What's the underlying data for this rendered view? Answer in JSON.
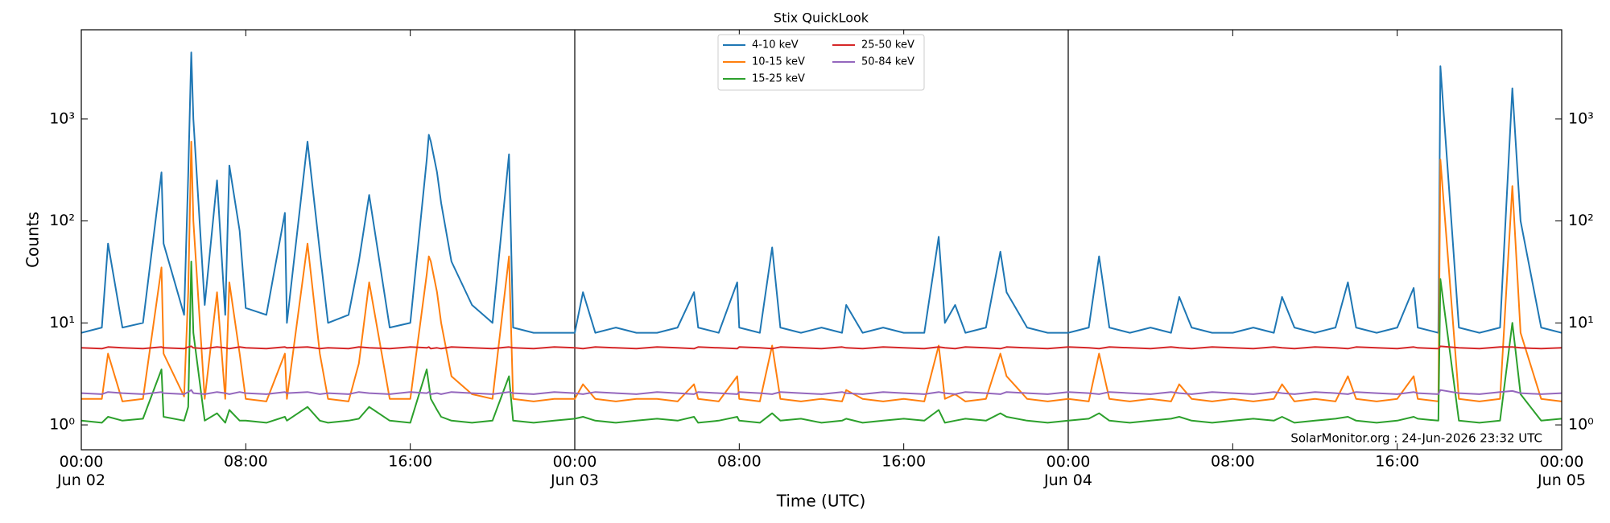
{
  "chart_data": {
    "type": "line",
    "title": "Stix QuickLook",
    "xlabel": "Time (UTC)",
    "ylabel": "Counts",
    "annotation": "SolarMonitor.org : 24-Jun-2026 23:32 UTC",
    "log_y": true,
    "legend": "upper center",
    "xlim": [
      0,
      72
    ],
    "ylim": [
      0.57,
      7500
    ],
    "xticks": [
      {
        "value": 0,
        "label": "00:00\nJun 02"
      },
      {
        "value": 8,
        "label": "08:00"
      },
      {
        "value": 16,
        "label": "16:00"
      },
      {
        "value": 24,
        "label": "00:00\nJun 03"
      },
      {
        "value": 32,
        "label": "08:00"
      },
      {
        "value": 40,
        "label": "16:00"
      },
      {
        "value": 48,
        "label": "00:00\nJun 04"
      },
      {
        "value": 56,
        "label": "08:00"
      },
      {
        "value": 64,
        "label": "16:00"
      },
      {
        "value": 72,
        "label": "00:00\nJun 05"
      }
    ],
    "yticks": [
      {
        "value": 1,
        "label": "10⁰"
      },
      {
        "value": 10,
        "label": "10¹"
      },
      {
        "value": 100,
        "label": "10²"
      },
      {
        "value": 1000,
        "label": "10³"
      }
    ],
    "x": [
      0,
      1,
      1.3,
      2,
      3,
      3.9,
      4,
      5,
      5.2,
      5.35,
      5.45,
      6,
      6.6,
      7,
      7.2,
      7.7,
      8,
      9,
      9.9,
      10,
      11,
      11.6,
      12,
      13,
      13.5,
      14,
      15,
      16,
      16.8,
      16.9,
      17,
      17.3,
      17.5,
      18,
      19,
      20,
      20.8,
      21,
      22,
      23,
      24,
      24.4,
      25,
      26,
      27,
      28,
      29,
      29.8,
      30,
      31,
      31.9,
      32,
      33,
      33.6,
      34,
      35,
      36,
      37,
      37.2,
      38,
      39,
      40,
      41,
      41.7,
      42,
      42.5,
      43,
      44,
      44.7,
      45,
      46,
      47,
      48,
      49,
      49.5,
      50,
      51,
      52,
      53,
      53.4,
      54,
      55,
      56,
      57,
      58,
      58.4,
      59,
      60,
      61,
      61.6,
      62,
      63,
      64,
      64.8,
      65,
      66,
      66.1,
      67,
      68,
      69,
      69.6,
      70,
      71,
      72
    ],
    "series": [
      {
        "name": "4-10 keV",
        "color": "#1f77b4",
        "values": [
          8,
          9,
          60,
          9,
          10,
          300,
          60,
          12,
          280,
          4500,
          1000,
          15,
          250,
          12,
          350,
          80,
          14,
          12,
          120,
          10,
          600,
          50,
          10,
          12,
          40,
          180,
          9,
          10,
          400,
          700,
          600,
          300,
          150,
          40,
          15,
          10,
          450,
          9,
          8,
          8,
          8,
          20,
          8,
          9,
          8,
          8,
          9,
          20,
          9,
          8,
          25,
          9,
          8,
          55,
          9,
          8,
          9,
          8,
          15,
          8,
          9,
          8,
          8,
          70,
          10,
          15,
          8,
          9,
          50,
          20,
          9,
          8,
          8,
          9,
          45,
          9,
          8,
          9,
          8,
          18,
          9,
          8,
          8,
          9,
          8,
          18,
          9,
          8,
          9,
          25,
          9,
          8,
          9,
          22,
          9,
          8,
          3300,
          9,
          8,
          9,
          2000,
          100,
          9,
          8
        ]
      },
      {
        "name": "10-15 keV",
        "color": "#ff7f0e",
        "values": [
          1.8,
          1.8,
          5,
          1.7,
          1.8,
          35,
          5,
          1.9,
          20,
          600,
          100,
          1.8,
          20,
          1.8,
          25,
          5,
          1.8,
          1.7,
          5,
          1.8,
          60,
          5,
          1.8,
          1.7,
          4,
          25,
          1.8,
          1.8,
          30,
          45,
          40,
          20,
          10,
          3,
          2,
          1.8,
          45,
          1.8,
          1.7,
          1.8,
          1.8,
          2.5,
          1.8,
          1.7,
          1.8,
          1.8,
          1.7,
          2.5,
          1.8,
          1.7,
          3,
          1.8,
          1.7,
          6,
          1.8,
          1.7,
          1.8,
          1.7,
          2.2,
          1.8,
          1.7,
          1.8,
          1.7,
          6,
          1.8,
          2,
          1.7,
          1.8,
          5,
          3,
          1.8,
          1.7,
          1.8,
          1.7,
          5,
          1.8,
          1.7,
          1.8,
          1.7,
          2.5,
          1.8,
          1.7,
          1.8,
          1.7,
          1.8,
          2.5,
          1.7,
          1.8,
          1.7,
          3,
          1.8,
          1.7,
          1.8,
          3,
          1.8,
          1.7,
          400,
          1.8,
          1.7,
          1.8,
          220,
          8,
          1.8,
          1.7
        ]
      },
      {
        "name": "15-25 keV",
        "color": "#2ca02c",
        "values": [
          1.1,
          1.05,
          1.2,
          1.1,
          1.15,
          3.5,
          1.2,
          1.1,
          1.5,
          40,
          8,
          1.1,
          1.3,
          1.05,
          1.4,
          1.1,
          1.1,
          1.05,
          1.2,
          1.1,
          1.5,
          1.1,
          1.05,
          1.1,
          1.15,
          1.5,
          1.1,
          1.05,
          3.5,
          2.5,
          1.8,
          1.4,
          1.2,
          1.1,
          1.05,
          1.1,
          3,
          1.1,
          1.05,
          1.1,
          1.15,
          1.2,
          1.1,
          1.05,
          1.1,
          1.15,
          1.1,
          1.2,
          1.05,
          1.1,
          1.2,
          1.1,
          1.05,
          1.3,
          1.1,
          1.15,
          1.05,
          1.1,
          1.15,
          1.05,
          1.1,
          1.15,
          1.1,
          1.4,
          1.05,
          1.1,
          1.15,
          1.1,
          1.3,
          1.2,
          1.1,
          1.05,
          1.1,
          1.15,
          1.3,
          1.1,
          1.05,
          1.1,
          1.15,
          1.2,
          1.1,
          1.05,
          1.1,
          1.15,
          1.1,
          1.2,
          1.05,
          1.1,
          1.15,
          1.2,
          1.1,
          1.05,
          1.1,
          1.2,
          1.15,
          1.1,
          27,
          1.1,
          1.05,
          1.1,
          10,
          2,
          1.1,
          1.15
        ]
      },
      {
        "name": "25-50 keV",
        "color": "#d62728",
        "values": [
          5.7,
          5.6,
          5.8,
          5.7,
          5.6,
          5.8,
          5.7,
          5.6,
          5.8,
          5.9,
          5.7,
          5.6,
          5.8,
          5.7,
          5.6,
          5.8,
          5.7,
          5.6,
          5.8,
          5.7,
          5.8,
          5.6,
          5.7,
          5.6,
          5.8,
          5.7,
          5.6,
          5.8,
          5.7,
          5.8,
          5.6,
          5.7,
          5.6,
          5.8,
          5.7,
          5.6,
          5.8,
          5.7,
          5.6,
          5.8,
          5.7,
          5.6,
          5.8,
          5.7,
          5.6,
          5.8,
          5.7,
          5.6,
          5.8,
          5.7,
          5.6,
          5.8,
          5.7,
          5.6,
          5.8,
          5.7,
          5.6,
          5.8,
          5.7,
          5.6,
          5.8,
          5.7,
          5.6,
          5.8,
          5.7,
          5.6,
          5.8,
          5.7,
          5.6,
          5.8,
          5.7,
          5.6,
          5.8,
          5.7,
          5.6,
          5.8,
          5.7,
          5.6,
          5.8,
          5.7,
          5.6,
          5.8,
          5.7,
          5.6,
          5.8,
          5.7,
          5.6,
          5.8,
          5.7,
          5.6,
          5.8,
          5.7,
          5.6,
          5.8,
          5.7,
          5.6,
          5.9,
          5.7,
          5.6,
          5.8,
          5.8,
          5.7,
          5.6,
          5.7
        ]
      },
      {
        "name": "50-84 keV",
        "color": "#9467bd",
        "values": [
          2.05,
          2.0,
          2.1,
          2.05,
          2.0,
          2.1,
          2.05,
          2.0,
          2.1,
          2.2,
          2.05,
          2.0,
          2.1,
          2.05,
          2.0,
          2.1,
          2.05,
          2.0,
          2.1,
          2.05,
          2.1,
          2.0,
          2.05,
          2.0,
          2.1,
          2.05,
          2.0,
          2.1,
          2.05,
          2.1,
          2.0,
          2.05,
          2.0,
          2.1,
          2.05,
          2.0,
          2.1,
          2.05,
          2.0,
          2.1,
          2.05,
          2.0,
          2.1,
          2.05,
          2.0,
          2.1,
          2.05,
          2.0,
          2.1,
          2.05,
          2.0,
          2.1,
          2.05,
          2.0,
          2.1,
          2.05,
          2.0,
          2.1,
          2.05,
          2.0,
          2.1,
          2.05,
          2.0,
          2.1,
          2.05,
          2.0,
          2.1,
          2.05,
          2.0,
          2.1,
          2.05,
          2.0,
          2.1,
          2.05,
          2.0,
          2.1,
          2.05,
          2.0,
          2.1,
          2.05,
          2.0,
          2.1,
          2.05,
          2.0,
          2.1,
          2.05,
          2.0,
          2.1,
          2.05,
          2.0,
          2.1,
          2.05,
          2.0,
          2.1,
          2.05,
          2.0,
          2.2,
          2.05,
          2.0,
          2.1,
          2.15,
          2.05,
          2.0,
          2.05
        ]
      }
    ]
  }
}
